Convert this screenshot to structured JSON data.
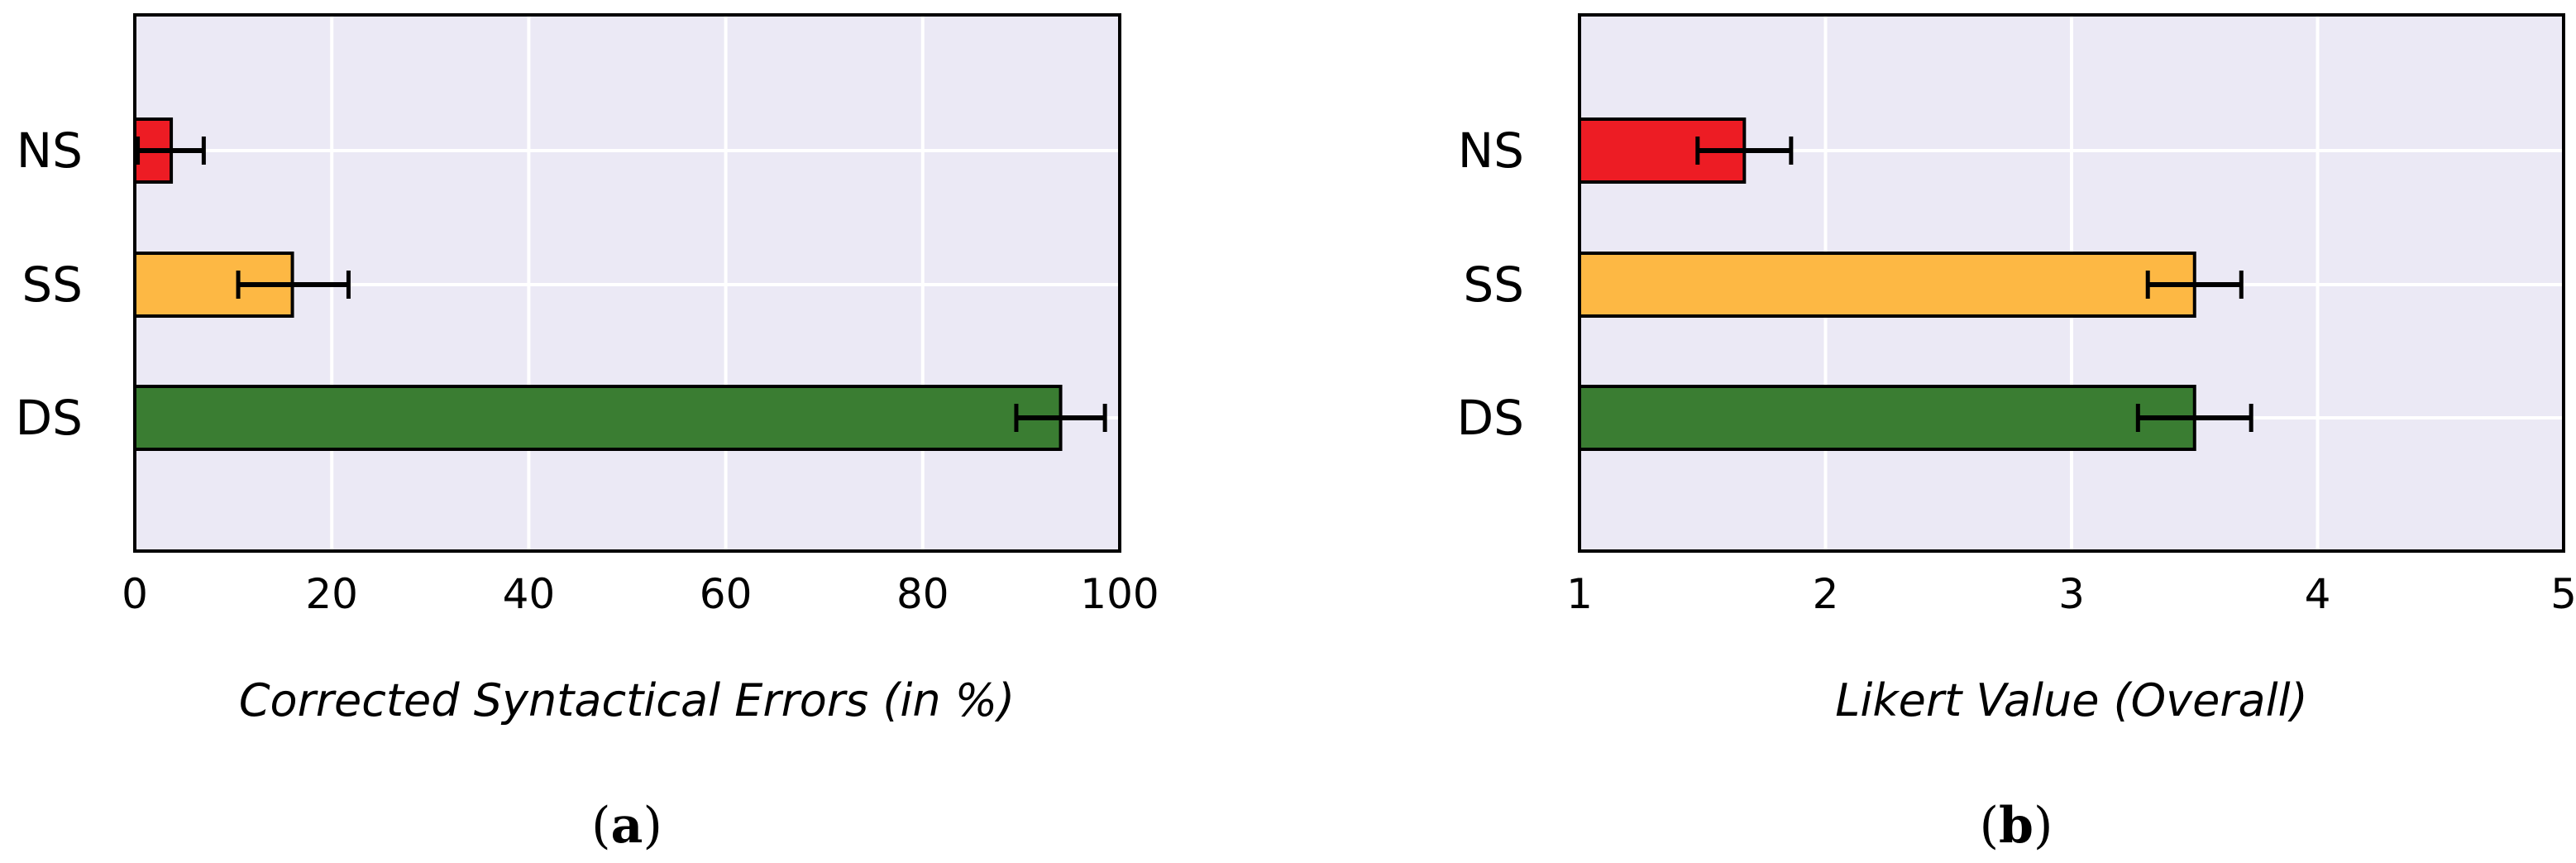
{
  "chart_data": [
    {
      "type": "bar",
      "orientation": "horizontal",
      "categories": [
        "NS",
        "SS",
        "DS"
      ],
      "values": [
        3.7,
        16,
        94
      ],
      "errors": [
        [
          0.3,
          7.0
        ],
        [
          10.5,
          21.7
        ],
        [
          89.5,
          98.5
        ]
      ],
      "colors": [
        "#ed1c24",
        "#fdb844",
        "#3a7d32"
      ],
      "xlabel": "Corrected Syntactical Errors (in %)",
      "xlim": [
        0,
        100
      ],
      "xticks": [
        "0",
        "20",
        "40",
        "60",
        "80",
        "100"
      ],
      "xtick_values": [
        0,
        20,
        40,
        60,
        80,
        100
      ],
      "grid": true,
      "caption": "(a)",
      "caption_open": "(",
      "caption_letter": "a",
      "caption_close": ")"
    },
    {
      "type": "bar",
      "orientation": "horizontal",
      "categories": [
        "NS",
        "SS",
        "DS"
      ],
      "values": [
        1.67,
        3.5,
        3.5
      ],
      "errors": [
        [
          1.48,
          1.86
        ],
        [
          3.31,
          3.69
        ],
        [
          3.27,
          3.73
        ]
      ],
      "colors": [
        "#ed1c24",
        "#fdb844",
        "#3a7d32"
      ],
      "xlabel": "Likert Value (Overall)",
      "xlim": [
        1,
        5
      ],
      "xticks": [
        "1",
        "2",
        "3",
        "4",
        "5"
      ],
      "xtick_values": [
        1,
        2,
        3,
        4,
        5
      ],
      "grid": true,
      "caption": "(b)",
      "caption_open": "(",
      "caption_letter": "b",
      "caption_close": ")"
    }
  ],
  "colors": {
    "plot_background": "#ebe9f5",
    "grid": "#ffffff",
    "error_bar": "#000000"
  }
}
